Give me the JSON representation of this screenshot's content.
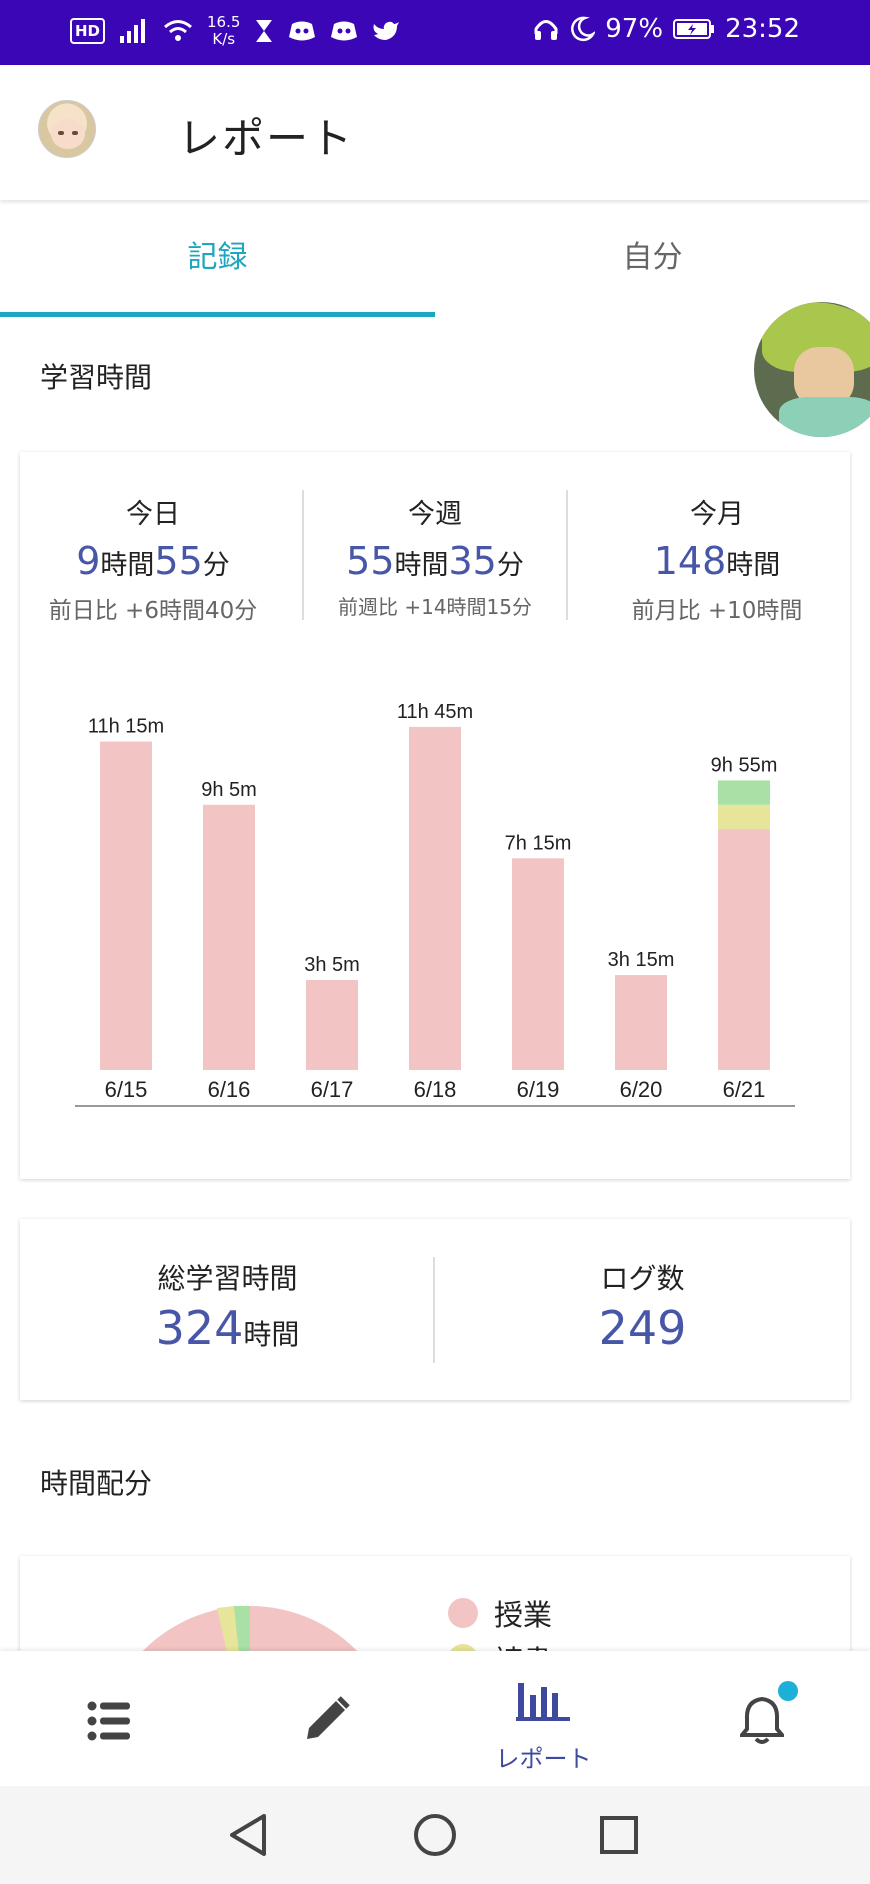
{
  "status_bar": {
    "hd": "HD",
    "speed_value": "16.5",
    "speed_unit": "K/s",
    "battery": "97%",
    "time": "23:52",
    "icons": [
      "signal-icon",
      "wifi-icon",
      "hourglass-icon",
      "discord-icon",
      "discord-icon",
      "twitter-icon",
      "headphones-icon",
      "moon-icon",
      "battery-icon"
    ]
  },
  "app_bar": {
    "title": "レポート"
  },
  "tabs": [
    {
      "label": "記録",
      "active": true
    },
    {
      "label": "自分",
      "active": false
    }
  ],
  "study_time": {
    "section_title": "学習時間",
    "today": {
      "label": "今日",
      "hours": "9",
      "hours_unit": "時間",
      "minutes": "55",
      "minutes_unit": "分",
      "diff": "前日比 +6時間40分"
    },
    "week": {
      "label": "今週",
      "hours": "55",
      "hours_unit": "時間",
      "minutes": "35",
      "minutes_unit": "分",
      "diff": "前週比 +14時間15分"
    },
    "month": {
      "label": "今月",
      "hours": "148",
      "hours_unit": "時間",
      "diff": "前月比 +10時間"
    }
  },
  "chart_data": {
    "type": "bar",
    "title": "",
    "categories": [
      "6/15",
      "6/16",
      "6/17",
      "6/18",
      "6/19",
      "6/20",
      "6/21"
    ],
    "data_labels": [
      "11h 15m",
      "9h 5m",
      "3h 5m",
      "11h 45m",
      "7h 15m",
      "3h 15m",
      "9h 55m"
    ],
    "series": [
      {
        "name": "授業",
        "color": "#f2c4c4",
        "values": [
          11.25,
          9.083,
          3.083,
          11.75,
          7.25,
          3.25,
          8.25
        ]
      },
      {
        "name": "読書",
        "color": "#e7e59a",
        "values": [
          0,
          0,
          0,
          0,
          0,
          0,
          0.833
        ]
      },
      {
        "name": "",
        "color": "#a8e0a6",
        "values": [
          0,
          0,
          0,
          0,
          0,
          0,
          0.833
        ]
      }
    ],
    "ylim": [
      0,
      12
    ],
    "stacked": true
  },
  "totals": {
    "total_label": "総学習時間",
    "total_value": "324",
    "total_unit": "時間",
    "logs_label": "ログ数",
    "logs_value": "249"
  },
  "distribution": {
    "section_title": "時間配分",
    "legend": [
      {
        "label": "授業",
        "color": "#f2c4c4"
      },
      {
        "label": "読書",
        "color": "#e7e59a"
      }
    ]
  },
  "bottom_nav": {
    "items": [
      {
        "icon": "list-icon",
        "label": ""
      },
      {
        "icon": "pencil-icon",
        "label": ""
      },
      {
        "icon": "bar-chart-icon",
        "label": "レポート",
        "active": true
      },
      {
        "icon": "bell-icon",
        "label": "",
        "badge": true
      }
    ]
  },
  "colors": {
    "status_bar": "#3b06b5",
    "accent": "#1ca6bf",
    "value_blue": "#4856a8",
    "badge": "#1cb0d8"
  }
}
